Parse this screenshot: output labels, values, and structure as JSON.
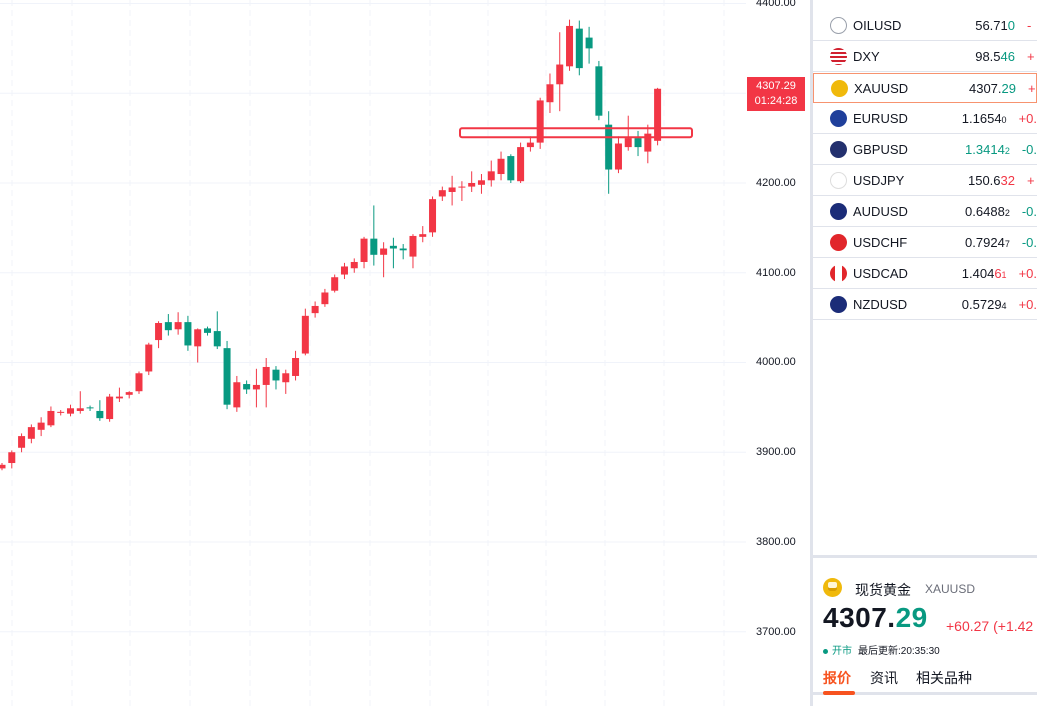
{
  "chart": {
    "price_axis": [
      "4400.00",
      "4200.00",
      "4100.00",
      "4000.00",
      "3900.00",
      "3800.00",
      "3700.00"
    ],
    "price_tag": {
      "price": "4307.29",
      "countdown": "01:24:28"
    },
    "colors": {
      "up": "#089981",
      "down": "#f23645",
      "highlight_box": "#f23645"
    },
    "candles": [
      {
        "o": 3882,
        "h": 3888,
        "l": 3880,
        "c": 3886
      },
      {
        "o": 3888,
        "h": 3902,
        "l": 3882,
        "c": 3900
      },
      {
        "o": 3905,
        "h": 3921,
        "l": 3900,
        "c": 3918
      },
      {
        "o": 3915,
        "h": 3931,
        "l": 3910,
        "c": 3928
      },
      {
        "o": 3925,
        "h": 3939,
        "l": 3918,
        "c": 3933
      },
      {
        "o": 3930,
        "h": 3951,
        "l": 3928,
        "c": 3946
      },
      {
        "o": 3944,
        "h": 3947,
        "l": 3941,
        "c": 3945
      },
      {
        "o": 3943,
        "h": 3953,
        "l": 3940,
        "c": 3949
      },
      {
        "o": 3946,
        "h": 3968,
        "l": 3943,
        "c": 3949
      },
      {
        "o": 3950,
        "h": 3952,
        "l": 3946,
        "c": 3949
      },
      {
        "o": 3946,
        "h": 3958,
        "l": 3935,
        "c": 3938
      },
      {
        "o": 3937,
        "h": 3965,
        "l": 3934,
        "c": 3962
      },
      {
        "o": 3960,
        "h": 3972,
        "l": 3956,
        "c": 3962
      },
      {
        "o": 3964,
        "h": 3968,
        "l": 3960,
        "c": 3967
      },
      {
        "o": 3968,
        "h": 3990,
        "l": 3965,
        "c": 3988
      },
      {
        "o": 3990,
        "h": 4022,
        "l": 3986,
        "c": 4020
      },
      {
        "o": 4025,
        "h": 4046,
        "l": 4016,
        "c": 4044
      },
      {
        "o": 4045,
        "h": 4054,
        "l": 4030,
        "c": 4036
      },
      {
        "o": 4037,
        "h": 4056,
        "l": 4031,
        "c": 4045
      },
      {
        "o": 4045,
        "h": 4052,
        "l": 4013,
        "c": 4019
      },
      {
        "o": 4018,
        "h": 4038,
        "l": 4000,
        "c": 4037
      },
      {
        "o": 4038,
        "h": 4040,
        "l": 4030,
        "c": 4033
      },
      {
        "o": 4035,
        "h": 4057,
        "l": 4015,
        "c": 4018
      },
      {
        "o": 4016,
        "h": 4024,
        "l": 3948,
        "c": 3953
      },
      {
        "o": 3950,
        "h": 3985,
        "l": 3945,
        "c": 3978
      },
      {
        "o": 3976,
        "h": 3980,
        "l": 3965,
        "c": 3970
      },
      {
        "o": 3970,
        "h": 3993,
        "l": 3950,
        "c": 3975
      },
      {
        "o": 3975,
        "h": 4005,
        "l": 3950,
        "c": 3995
      },
      {
        "o": 3992,
        "h": 3996,
        "l": 3970,
        "c": 3980
      },
      {
        "o": 3978,
        "h": 3992,
        "l": 3965,
        "c": 3988
      },
      {
        "o": 3985,
        "h": 4013,
        "l": 3980,
        "c": 4005
      },
      {
        "o": 4010,
        "h": 4060,
        "l": 4008,
        "c": 4052
      },
      {
        "o": 4055,
        "h": 4068,
        "l": 4050,
        "c": 4063
      },
      {
        "o": 4065,
        "h": 4082,
        "l": 4062,
        "c": 4078
      },
      {
        "o": 4080,
        "h": 4098,
        "l": 4078,
        "c": 4095
      },
      {
        "o": 4098,
        "h": 4111,
        "l": 4093,
        "c": 4107
      },
      {
        "o": 4105,
        "h": 4116,
        "l": 4100,
        "c": 4112
      },
      {
        "o": 4112,
        "h": 4140,
        "l": 4105,
        "c": 4138
      },
      {
        "o": 4138,
        "h": 4175,
        "l": 4108,
        "c": 4120
      },
      {
        "o": 4120,
        "h": 4134,
        "l": 4095,
        "c": 4127
      },
      {
        "o": 4130,
        "h": 4139,
        "l": 4105,
        "c": 4127
      },
      {
        "o": 4127,
        "h": 4132,
        "l": 4115,
        "c": 4125
      },
      {
        "o": 4118,
        "h": 4143,
        "l": 4105,
        "c": 4141
      },
      {
        "o": 4140,
        "h": 4152,
        "l": 4134,
        "c": 4143
      },
      {
        "o": 4145,
        "h": 4185,
        "l": 4140,
        "c": 4182
      },
      {
        "o": 4185,
        "h": 4196,
        "l": 4180,
        "c": 4192
      },
      {
        "o": 4190,
        "h": 4208,
        "l": 4175,
        "c": 4195
      },
      {
        "o": 4195,
        "h": 4202,
        "l": 4180,
        "c": 4196
      },
      {
        "o": 4196,
        "h": 4213,
        "l": 4190,
        "c": 4200
      },
      {
        "o": 4198,
        "h": 4210,
        "l": 4188,
        "c": 4203
      },
      {
        "o": 4203,
        "h": 4225,
        "l": 4196,
        "c": 4213
      },
      {
        "o": 4210,
        "h": 4235,
        "l": 4203,
        "c": 4227
      },
      {
        "o": 4230,
        "h": 4232,
        "l": 4200,
        "c": 4203
      },
      {
        "o": 4202,
        "h": 4245,
        "l": 4200,
        "c": 4240
      },
      {
        "o": 4240,
        "h": 4252,
        "l": 4235,
        "c": 4245
      },
      {
        "o": 4245,
        "h": 4295,
        "l": 4238,
        "c": 4292
      },
      {
        "o": 4290,
        "h": 4322,
        "l": 4278,
        "c": 4310
      },
      {
        "o": 4310,
        "h": 4368,
        "l": 4280,
        "c": 4332
      },
      {
        "o": 4330,
        "h": 4382,
        "l": 4325,
        "c": 4375
      },
      {
        "o": 4372,
        "h": 4381,
        "l": 4320,
        "c": 4328
      },
      {
        "o": 4362,
        "h": 4374,
        "l": 4333,
        "c": 4350
      },
      {
        "o": 4330,
        "h": 4336,
        "l": 4270,
        "c": 4275
      },
      {
        "o": 4265,
        "h": 4280,
        "l": 4188,
        "c": 4215
      },
      {
        "o": 4215,
        "h": 4252,
        "l": 4211,
        "c": 4244
      },
      {
        "o": 4240,
        "h": 4275,
        "l": 4236,
        "c": 4250
      },
      {
        "o": 4250,
        "h": 4258,
        "l": 4230,
        "c": 4240
      },
      {
        "o": 4235,
        "h": 4265,
        "l": 4222,
        "c": 4255
      },
      {
        "o": 4247,
        "h": 4306,
        "l": 4242,
        "c": 4305
      }
    ]
  },
  "watchlist": [
    {
      "flag": "crude",
      "symbol": "OILUSD",
      "price_a": "56.71",
      "price_b": "0",
      "price_b_dir": "up",
      "change": "-",
      "change_dir": "dn"
    },
    {
      "flag": "us",
      "symbol": "DXY",
      "price_a": "98.5",
      "price_b": "46",
      "price_b_dir": "up",
      "change": "+",
      "change_dir": "dn"
    },
    {
      "flag": "gold",
      "symbol": "XAUUSD",
      "price_a": "4307.",
      "price_b": "29",
      "price_b_dir": "up",
      "change": "+",
      "change_dir": "dn",
      "selected": true
    },
    {
      "flag": "eu",
      "symbol": "EURUSD",
      "price_a": "1.1654",
      "price_b": "0",
      "price_b_dir": "small",
      "change": "+0.",
      "change_dir": "dn"
    },
    {
      "flag": "uk",
      "symbol": "GBPUSD",
      "price_a": "1.3414",
      "price_b": "2",
      "price_b_dir": "small",
      "change": "-0.",
      "change_dir": "up",
      "up_price": true
    },
    {
      "flag": "jp",
      "symbol": "USDJPY",
      "price_a": "150.6",
      "price_b": "32",
      "price_b_dir": "dn",
      "change": "+",
      "change_dir": "dn"
    },
    {
      "flag": "au",
      "symbol": "AUDUSD",
      "price_a": "0.6488",
      "price_b": "2",
      "price_b_dir": "small",
      "change": "-0.",
      "change_dir": "up"
    },
    {
      "flag": "ch",
      "symbol": "USDCHF",
      "price_a": "0.7924",
      "price_b": "7",
      "price_b_dir": "small",
      "change": "-0.",
      "change_dir": "up"
    },
    {
      "flag": "ca",
      "symbol": "USDCAD",
      "price_a": "1.404",
      "price_b": "6",
      "price_b_dir": "dn",
      "price_c": "1",
      "change": "+0.",
      "change_dir": "dn"
    },
    {
      "flag": "nz",
      "symbol": "NZDUSD",
      "price_a": "0.5729",
      "price_b": "4",
      "price_b_dir": "small",
      "change": "+0.",
      "change_dir": "dn"
    }
  ],
  "detail": {
    "name": "现货黄金",
    "symbol": "XAUUSD",
    "price_int": "4307.",
    "price_frac": "29",
    "change": "+60.27 (+1.42",
    "status_open": "开市",
    "status_update": "最后更新:20:35:30",
    "tabs": [
      "报价",
      "资讯",
      "相关品种"
    ]
  }
}
